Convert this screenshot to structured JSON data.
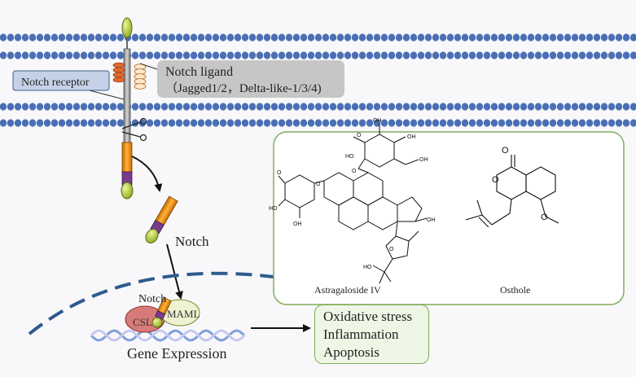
{
  "labels": {
    "notch_ligand": "Notch ligand",
    "notch_ligand_detail": "（Jagged1/2，Delta-like-1/3/4)",
    "notch_receptor": "Notch receptor",
    "notch_free": "Notch",
    "notch_nucleus": "Notch",
    "csl": "CSL",
    "maml": "MAML",
    "gene_expression": "Gene Expression"
  },
  "outcomes": [
    "Oxidative stress",
    " Inflammation",
    "Apoptosis"
  ],
  "compounds": [
    {
      "name": "Astragaloside IV"
    },
    {
      "name": "Osthole"
    }
  ],
  "structure_atoms": {
    "o": "O",
    "oh": "OH",
    "ho": "HO"
  },
  "colors": {
    "membrane": "#4a6fb5",
    "receptor_stem": "#9aa1aa",
    "ligand_knob": "#a6c63a",
    "orange": "#f49a1a",
    "purple": "#7a3b8c",
    "nucleus_dash": "#2f5b8e",
    "compound_border": "#7fae5a",
    "csl": "#d97a7a",
    "maml": "#eef2d0"
  }
}
